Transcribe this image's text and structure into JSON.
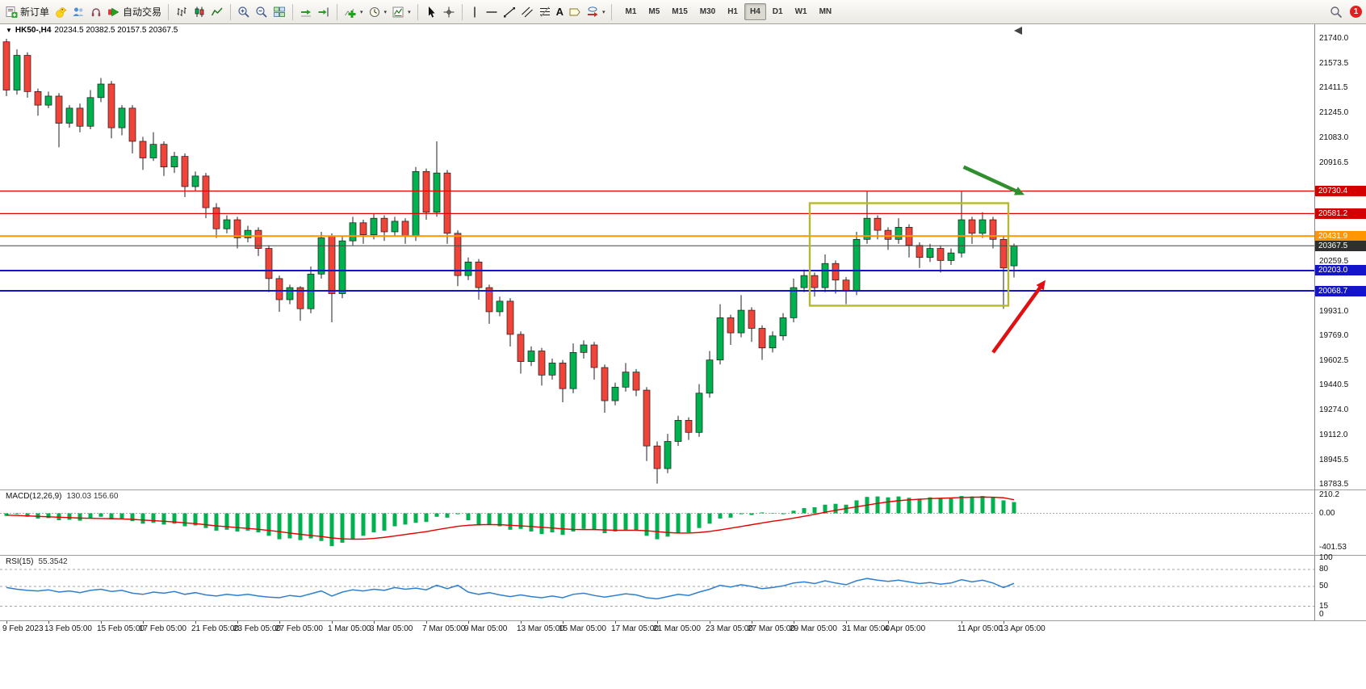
{
  "toolbar": {
    "new_order": "新订单",
    "autotrading": "自动交易",
    "text_tool": "A",
    "timeframes": [
      "M1",
      "M5",
      "M15",
      "M30",
      "H1",
      "H4",
      "D1",
      "W1",
      "MN"
    ],
    "active_timeframe": "H4",
    "notification_count": "1",
    "icons": [
      "new-order-icon",
      "chick-icon",
      "community-icon",
      "headset-icon",
      "autotrading-play-icon",
      "bar-chart-icon",
      "candlestick-icon",
      "line-chart-icon",
      "zoom-in-icon",
      "zoom-out-icon",
      "tile-windows-icon",
      "auto-scroll-icon",
      "chart-shift-icon",
      "add-indicator-icon",
      "periods-clock-icon",
      "template-icon",
      "cursor-icon",
      "crosshair-icon",
      "vertical-line-icon",
      "horizontal-line-icon",
      "trendline-icon",
      "channel-icon",
      "fibonacci-icon",
      "text-icon",
      "label-icon",
      "shapes-icon",
      "search-icon",
      "notification-badge"
    ]
  },
  "window": {
    "symbol_title": "HK50-,H4",
    "ohlc_text": "20234.5 20382.5 20157.5 20367.5"
  },
  "chart_data": [
    {
      "type": "candlestick",
      "symbol": "HK50-",
      "timeframe": "H4",
      "title": "HK50-,H4 20234.5 20382.5 20157.5 20367.5",
      "last_ohlc": {
        "open": 20234.5,
        "high": 20382.5,
        "low": 20157.5,
        "close": 20367.5
      },
      "ylim": [
        18783.5,
        21740.0
      ],
      "y_ticks": [
        "21740.0",
        "21573.5",
        "21411.5",
        "21245.0",
        "21083.0",
        "20916.5",
        "20259.5",
        "19931.0",
        "19769.0",
        "19602.5",
        "19440.5",
        "19274.0",
        "19112.0",
        "18945.5",
        "18783.5"
      ],
      "x_labels": [
        {
          "bar": 0,
          "label": "9 Feb 2023"
        },
        {
          "bar": 4,
          "label": "13 Feb 05:00"
        },
        {
          "bar": 9,
          "label": "15 Feb 05:00"
        },
        {
          "bar": 13,
          "label": "17 Feb 05:00"
        },
        {
          "bar": 18,
          "label": "21 Feb 05:00"
        },
        {
          "bar": 22,
          "label": "23 Feb 05:00"
        },
        {
          "bar": 26,
          "label": "27 Feb 05:00"
        },
        {
          "bar": 31,
          "label": "1 Mar 05:00"
        },
        {
          "bar": 35,
          "label": "3 Mar 05:00"
        },
        {
          "bar": 40,
          "label": "7 Mar 05:00"
        },
        {
          "bar": 44,
          "label": "9 Mar 05:00"
        },
        {
          "bar": 49,
          "label": "13 Mar 05:00"
        },
        {
          "bar": 53,
          "label": "15 Mar 05:00"
        },
        {
          "bar": 58,
          "label": "17 Mar 05:00"
        },
        {
          "bar": 62,
          "label": "21 Mar 05:00"
        },
        {
          "bar": 67,
          "label": "23 Mar 05:00"
        },
        {
          "bar": 71,
          "label": "27 Mar 05:00"
        },
        {
          "bar": 75,
          "label": "29 Mar 05:00"
        },
        {
          "bar": 80,
          "label": "31 Mar 05:00"
        },
        {
          "bar": 84,
          "label": "4 Apr 05:00"
        },
        {
          "bar": 91,
          "label": "11 Apr 05:00"
        },
        {
          "bar": 95,
          "label": "13 Apr 05:00"
        }
      ],
      "colors": {
        "up": "#00b14f",
        "down": "#f0433a",
        "wick": "#222222"
      },
      "levels": [
        {
          "price": 20730.4,
          "label": "20730.4",
          "color": "#e00000",
          "width": 1.2,
          "tag_bg": "#d40000"
        },
        {
          "price": 20581.2,
          "label": "20581.2",
          "color": "#e00000",
          "width": 1.2,
          "tag_bg": "#d40000"
        },
        {
          "price": 20431.9,
          "label": "20431.9",
          "color": "#ff9500",
          "width": 2,
          "tag_bg": "#ff9500"
        },
        {
          "price": 20367.5,
          "label": "20367.5",
          "color": "#444444",
          "width": 1,
          "tag_bg": "#2f2f2f"
        },
        {
          "price": 20203.0,
          "label": "20203.0",
          "color": "#1414cc",
          "width": 2,
          "tag_bg": "#1414cc"
        },
        {
          "price": 20068.7,
          "label": "20068.7",
          "color": "#1414cc",
          "width": 2,
          "tag_bg": "#1414cc"
        }
      ],
      "annotations": {
        "rectangle": {
          "from_bar": 77,
          "to_bar": 95,
          "top": 20650,
          "bottom": 19970,
          "color": "#b4b832"
        },
        "arrows": [
          {
            "name": "green-down-arrow",
            "color": "#2f8f2f",
            "from": {
              "bar": 91.2,
              "price": 20890
            },
            "to": {
              "bar": 97,
              "price": 20705
            }
          },
          {
            "name": "red-up-arrow",
            "color": "#e01010",
            "from": {
              "bar": 94,
              "price": 19660
            },
            "to": {
              "bar": 99,
              "price": 20140
            }
          }
        ]
      },
      "candles": [
        [
          21720,
          21740,
          21360,
          21400
        ],
        [
          21400,
          21670,
          21370,
          21630
        ],
        [
          21630,
          21650,
          21350,
          21390
        ],
        [
          21390,
          21410,
          21230,
          21300
        ],
        [
          21300,
          21390,
          21280,
          21360
        ],
        [
          21360,
          21380,
          21020,
          21180
        ],
        [
          21180,
          21300,
          21150,
          21280
        ],
        [
          21280,
          21310,
          21120,
          21160
        ],
        [
          21160,
          21400,
          21140,
          21350
        ],
        [
          21350,
          21480,
          21320,
          21440
        ],
        [
          21440,
          21460,
          21080,
          21150
        ],
        [
          21150,
          21300,
          21100,
          21280
        ],
        [
          21280,
          21300,
          20980,
          21060
        ],
        [
          21060,
          21090,
          20870,
          20950
        ],
        [
          20950,
          21120,
          20930,
          21040
        ],
        [
          21040,
          21060,
          20830,
          20890
        ],
        [
          20890,
          20990,
          20850,
          20960
        ],
        [
          20960,
          20980,
          20690,
          20760
        ],
        [
          20760,
          20860,
          20730,
          20830
        ],
        [
          20830,
          20850,
          20550,
          20620
        ],
        [
          20620,
          20650,
          20420,
          20480
        ],
        [
          20480,
          20570,
          20450,
          20540
        ],
        [
          20540,
          20560,
          20350,
          20420
        ],
        [
          20420,
          20500,
          20390,
          20470
        ],
        [
          20470,
          20490,
          20300,
          20350
        ],
        [
          20350,
          20370,
          20060,
          20150
        ],
        [
          20150,
          20170,
          19930,
          20010
        ],
        [
          20010,
          20110,
          19980,
          20090
        ],
        [
          20090,
          20100,
          19870,
          19950
        ],
        [
          19950,
          20230,
          19920,
          20180
        ],
        [
          20180,
          20460,
          20150,
          20420
        ],
        [
          20430,
          20450,
          19860,
          20050
        ],
        [
          20050,
          20430,
          20020,
          20400
        ],
        [
          20400,
          20560,
          20370,
          20520
        ],
        [
          20520,
          20540,
          20380,
          20440
        ],
        [
          20440,
          20580,
          20410,
          20550
        ],
        [
          20550,
          20570,
          20400,
          20460
        ],
        [
          20460,
          20560,
          20430,
          20530
        ],
        [
          20530,
          20550,
          20380,
          20430
        ],
        [
          20430,
          20890,
          20400,
          20860
        ],
        [
          20860,
          20880,
          20540,
          20590
        ],
        [
          20590,
          21060,
          20560,
          20850
        ],
        [
          20850,
          20870,
          20380,
          20450
        ],
        [
          20450,
          20470,
          20100,
          20170
        ],
        [
          20170,
          20290,
          20140,
          20260
        ],
        [
          20260,
          20280,
          20010,
          20090
        ],
        [
          20090,
          20110,
          19850,
          19930
        ],
        [
          19930,
          20030,
          19900,
          20000
        ],
        [
          20000,
          20020,
          19700,
          19780
        ],
        [
          19780,
          19800,
          19520,
          19600
        ],
        [
          19600,
          19700,
          19570,
          19670
        ],
        [
          19670,
          19690,
          19440,
          19510
        ],
        [
          19510,
          19620,
          19480,
          19590
        ],
        [
          19590,
          19610,
          19330,
          19420
        ],
        [
          19420,
          19720,
          19390,
          19660
        ],
        [
          19660,
          19740,
          19620,
          19710
        ],
        [
          19710,
          19730,
          19480,
          19560
        ],
        [
          19560,
          19580,
          19260,
          19340
        ],
        [
          19340,
          19460,
          19310,
          19430
        ],
        [
          19430,
          19590,
          19400,
          19530
        ],
        [
          19530,
          19550,
          19370,
          19410
        ],
        [
          19410,
          19430,
          18940,
          19040
        ],
        [
          19040,
          19070,
          18790,
          18890
        ],
        [
          18890,
          19120,
          18860,
          19070
        ],
        [
          19070,
          19240,
          19040,
          19210
        ],
        [
          19210,
          19230,
          19080,
          19130
        ],
        [
          19130,
          19450,
          19100,
          19390
        ],
        [
          19390,
          19670,
          19360,
          19610
        ],
        [
          19610,
          19980,
          19580,
          19890
        ],
        [
          19890,
          19910,
          19710,
          19790
        ],
        [
          19790,
          20040,
          19760,
          19940
        ],
        [
          19940,
          19960,
          19730,
          19820
        ],
        [
          19820,
          19840,
          19610,
          19690
        ],
        [
          19690,
          19800,
          19660,
          19770
        ],
        [
          19770,
          19920,
          19740,
          19890
        ],
        [
          19890,
          20150,
          19860,
          20090
        ],
        [
          20090,
          20210,
          20060,
          20170
        ],
        [
          20170,
          20190,
          20030,
          20090
        ],
        [
          20090,
          20310,
          20060,
          20250
        ],
        [
          20250,
          20270,
          20050,
          20140
        ],
        [
          20140,
          20160,
          19980,
          20070
        ],
        [
          20070,
          20460,
          20040,
          20410
        ],
        [
          20410,
          20730,
          20380,
          20550
        ],
        [
          20550,
          20570,
          20410,
          20470
        ],
        [
          20470,
          20490,
          20340,
          20410
        ],
        [
          20410,
          20550,
          20380,
          20490
        ],
        [
          20490,
          20510,
          20290,
          20370
        ],
        [
          20370,
          20390,
          20220,
          20290
        ],
        [
          20290,
          20380,
          20260,
          20350
        ],
        [
          20350,
          20370,
          20190,
          20270
        ],
        [
          20270,
          20350,
          20240,
          20320
        ],
        [
          20320,
          20730,
          20290,
          20540
        ],
        [
          20540,
          20560,
          20380,
          20450
        ],
        [
          20450,
          20590,
          20420,
          20540
        ],
        [
          20540,
          20560,
          20350,
          20410
        ],
        [
          20410,
          20430,
          19950,
          20220
        ],
        [
          20234.5,
          20382.5,
          20157.5,
          20367.5
        ]
      ]
    },
    {
      "type": "macd",
      "label": "MACD(12,26,9)",
      "values_text": "130.03 156.60",
      "y_ticks": [
        "210.2",
        "0.00",
        "-401.53"
      ],
      "y_tick_values": [
        210.2,
        0,
        -401.53
      ],
      "colors": {
        "histogram": "#00b14f",
        "signal": "#e00000"
      },
      "histogram": [
        -30,
        -10,
        -40,
        -60,
        -55,
        -80,
        -75,
        -85,
        -60,
        -40,
        -70,
        -60,
        -90,
        -120,
        -110,
        -130,
        -120,
        -150,
        -140,
        -170,
        -200,
        -190,
        -210,
        -200,
        -220,
        -260,
        -300,
        -290,
        -310,
        -290,
        -320,
        -380,
        -340,
        -300,
        -260,
        -220,
        -200,
        -150,
        -130,
        -110,
        -100,
        -40,
        -50,
        -10,
        -80,
        -140,
        -130,
        -150,
        -190,
        -180,
        -210,
        -240,
        -220,
        -250,
        -210,
        -180,
        -190,
        -230,
        -210,
        -190,
        -200,
        -260,
        -300,
        -270,
        -230,
        -220,
        -170,
        -120,
        -60,
        -50,
        -10,
        -20,
        10,
        0,
        -10,
        30,
        60,
        70,
        100,
        110,
        100,
        150,
        190,
        195,
        185,
        195,
        180,
        170,
        185,
        175,
        180,
        200,
        195,
        200,
        190,
        150,
        130.03
      ],
      "signal": [
        -20,
        -25,
        -30,
        -35,
        -40,
        -45,
        -50,
        -55,
        -58,
        -60,
        -62,
        -65,
        -70,
        -78,
        -85,
        -92,
        -100,
        -110,
        -120,
        -132,
        -145,
        -155,
        -165,
        -175,
        -185,
        -198,
        -212,
        -228,
        -243,
        -256,
        -268,
        -285,
        -295,
        -300,
        -298,
        -290,
        -278,
        -262,
        -245,
        -228,
        -212,
        -190,
        -170,
        -150,
        -138,
        -132,
        -130,
        -132,
        -138,
        -145,
        -152,
        -162,
        -170,
        -180,
        -186,
        -188,
        -188,
        -192,
        -196,
        -196,
        -196,
        -202,
        -212,
        -222,
        -228,
        -228,
        -222,
        -210,
        -192,
        -172,
        -152,
        -132,
        -112,
        -92,
        -75,
        -55,
        -35,
        -12,
        12,
        35,
        55,
        75,
        95,
        115,
        132,
        146,
        156,
        163,
        170,
        174,
        178,
        183,
        186,
        188,
        186,
        180,
        156.6
      ]
    },
    {
      "type": "rsi",
      "label": "RSI(15)",
      "value_text": "55.3542",
      "y_ticks": [
        "100",
        "80",
        "50",
        "15",
        "0"
      ],
      "y_tick_values": [
        100,
        80,
        50,
        15,
        0
      ],
      "levels": [
        80,
        50,
        15
      ],
      "color": "#2f7fd0",
      "values": [
        48,
        45,
        43,
        42,
        44,
        40,
        42,
        39,
        43,
        45,
        41,
        43,
        38,
        36,
        40,
        38,
        41,
        36,
        39,
        35,
        33,
        36,
        34,
        36,
        33,
        31,
        30,
        34,
        32,
        37,
        42,
        33,
        40,
        44,
        42,
        45,
        43,
        48,
        45,
        47,
        44,
        52,
        46,
        52,
        40,
        36,
        39,
        35,
        32,
        35,
        32,
        30,
        33,
        30,
        36,
        38,
        34,
        31,
        34,
        37,
        35,
        30,
        28,
        32,
        36,
        34,
        40,
        45,
        52,
        49,
        53,
        50,
        46,
        48,
        51,
        56,
        58,
        55,
        60,
        56,
        53,
        60,
        64,
        61,
        59,
        61,
        58,
        55,
        57,
        54,
        56,
        62,
        58,
        61,
        56,
        48,
        55.35
      ]
    }
  ]
}
